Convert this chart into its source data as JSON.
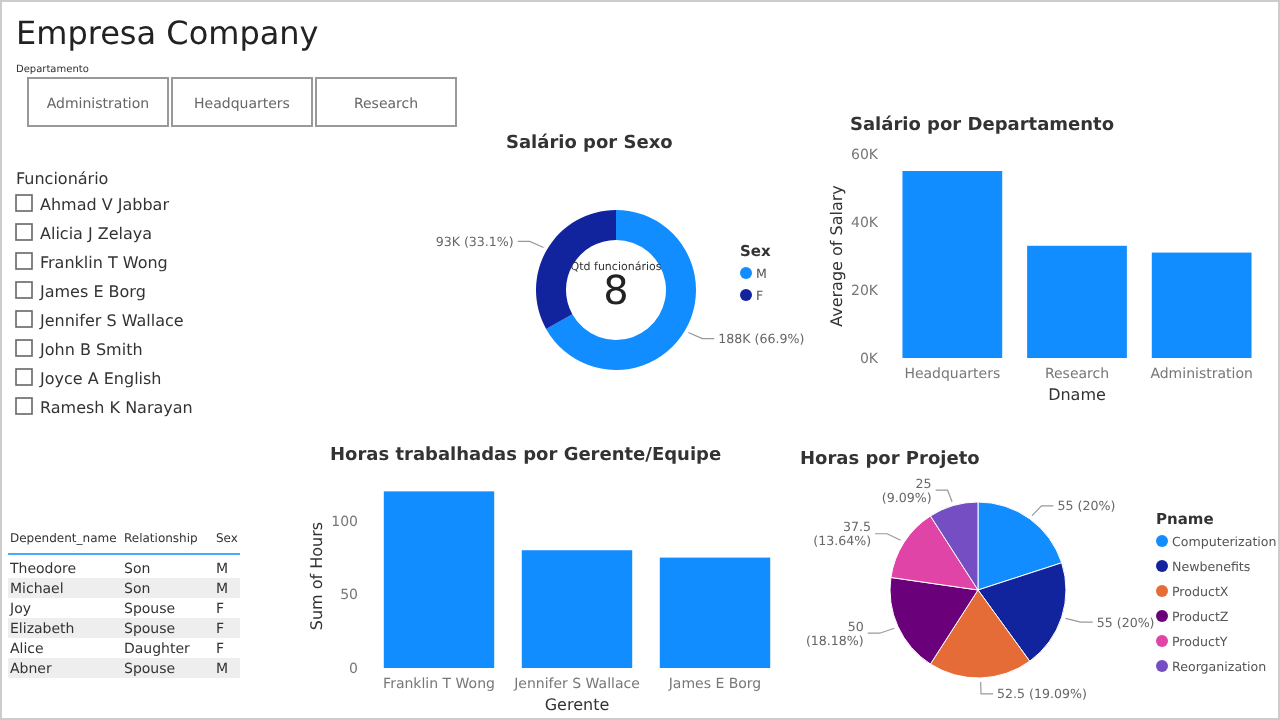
{
  "chart_data": [
    {
      "type": "other",
      "title": "Empresa Company",
      "subtitle": "Departamento",
      "categories": [
        "Administration",
        "Headquarters",
        "Research"
      ]
    },
    {
      "type": "donut",
      "title": "Salário por Sexo",
      "categories": [
        "M",
        "F"
      ],
      "values": [
        188000,
        93000
      ],
      "colors": [
        "#118dff",
        "#12239e"
      ],
      "value_labels": [
        "188K (66.9%)",
        "93K (33.1%)"
      ],
      "legend_title": "Sex",
      "legend": "right",
      "annotations": [
        "Qtd funcionários",
        "8"
      ]
    },
    {
      "type": "bar",
      "title": "Salário por Departamento",
      "categories": [
        "Headquarters",
        "Research",
        "Administration"
      ],
      "values": [
        55000,
        33000,
        31000
      ],
      "color": "#118dff",
      "xlabel": "Dname",
      "ylabel": "Average of Salary",
      "ylim": [
        0,
        60000
      ],
      "yticks": [
        {
          "value": 0,
          "label": "0K"
        },
        {
          "value": 20000,
          "label": "20K"
        },
        {
          "value": 40000,
          "label": "40K"
        },
        {
          "value": 60000,
          "label": "60K"
        }
      ]
    },
    {
      "type": "other",
      "title": "Funcionário",
      "categories": [
        "Ahmad V Jabbar",
        "Alicia J Zelaya",
        "Franklin T Wong",
        "James E Borg",
        "Jennifer S Wallace",
        "John B Smith",
        "Joyce A English",
        "Ramesh K Narayan"
      ]
    },
    {
      "type": "other",
      "categories": [
        "Dependent_name",
        "Relationship",
        "Sex"
      ],
      "cell_labels": [
        [
          "Theodore",
          "Son",
          "M"
        ],
        [
          "Michael",
          "Son",
          "M"
        ],
        [
          "Joy",
          "Spouse",
          "F"
        ],
        [
          "Elizabeth",
          "Spouse",
          "F"
        ],
        [
          "Alice",
          "Daughter",
          "F"
        ],
        [
          "Abner",
          "Spouse",
          "M"
        ]
      ]
    },
    {
      "type": "bar",
      "title": "Horas trabalhadas por Gerente/Equipe",
      "categories": [
        "Franklin T Wong",
        "Jennifer S Wallace",
        "James E Borg"
      ],
      "values": [
        120,
        80,
        75
      ],
      "color": "#118dff",
      "xlabel": "Gerente",
      "ylabel": "Sum of Hours",
      "ylim": [
        0,
        125
      ],
      "yticks": [
        0,
        50,
        100
      ]
    },
    {
      "type": "pie",
      "title": "Horas por Projeto",
      "categories": [
        "Computerization",
        "Newbenefits",
        "ProductX",
        "ProductZ",
        "ProductY",
        "Reorganization"
      ],
      "values": [
        55,
        55,
        52.5,
        50,
        37.5,
        25
      ],
      "colors": [
        "#118dff",
        "#12239e",
        "#e66c37",
        "#6b007b",
        "#e044a7",
        "#744ec2"
      ],
      "value_labels": [
        "55 (20%)",
        "55 (20%)",
        "52.5 (19.09%)",
        "50 (18.18%)",
        "37.5 (13.64%)",
        "25 (9.09%)"
      ],
      "legend_title": "Pname",
      "legend": "right"
    }
  ]
}
